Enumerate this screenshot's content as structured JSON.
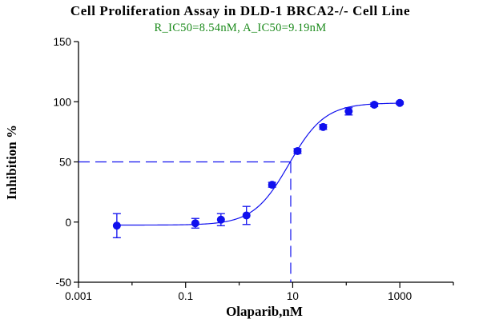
{
  "colors": {
    "series": "#1010ee",
    "subtitle": "#1b8a1b",
    "axis": "#000000",
    "background": "#ffffff"
  },
  "chart_data": {
    "type": "scatter",
    "title": "Cell Proliferation Assay in DLD-1 BRCA2-/- Cell Line",
    "subtitle": "R_IC50=8.54nM, A_IC50=9.19nM",
    "xlabel": "Olaparib,nM",
    "ylabel": "Inhibition %",
    "xscale": "log",
    "xlim": [
      0.001,
      10000
    ],
    "ylim": [
      -50,
      150
    ],
    "x_ticks": [
      0.001,
      0.1,
      10,
      1000
    ],
    "x_tick_labels": [
      "0.001",
      "0.1",
      "10",
      "1000"
    ],
    "y_ticks": [
      -50,
      0,
      50,
      100,
      150
    ],
    "y_tick_labels": [
      "-50",
      "0",
      "50",
      "100",
      "150"
    ],
    "grid": false,
    "legend": "none",
    "series": [
      {
        "x": [
          0.0052,
          0.152,
          0.457,
          1.37,
          4.12,
          12.3,
          37.0,
          111,
          333,
          1000
        ],
        "y": [
          -3,
          -1,
          2,
          5.5,
          31,
          59,
          79,
          92,
          97.5,
          99
        ],
        "error": [
          10,
          4,
          5,
          7.5,
          2,
          2,
          2,
          3,
          1.5,
          1
        ]
      }
    ],
    "fit_curve": {
      "model": "4PL",
      "bottom": -2.5,
      "top": 99,
      "ic50": 8.54,
      "hill": 1.3
    },
    "reference_lines": {
      "y": 50,
      "x": 9.19
    }
  }
}
